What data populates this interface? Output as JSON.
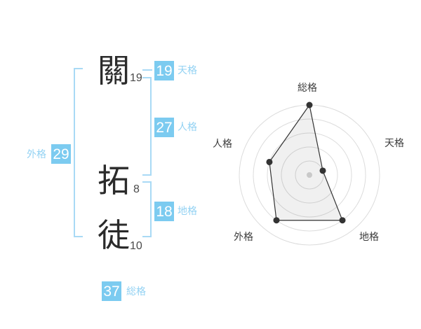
{
  "name_analysis": {
    "surname": [
      {
        "char": "關",
        "strokes": "19"
      }
    ],
    "given_name": [
      {
        "char": "拓",
        "strokes": "8"
      },
      {
        "char": "徒",
        "strokes": "10"
      }
    ],
    "kaku": {
      "tenkaku": {
        "value": "19",
        "label": "天格"
      },
      "jinkaku": {
        "value": "27",
        "label": "人格"
      },
      "chikaku": {
        "value": "18",
        "label": "地格"
      },
      "gaikaku": {
        "value": "29",
        "label": "外格"
      },
      "soukaku": {
        "value": "37",
        "label": "総格"
      }
    }
  },
  "colors": {
    "badge_blue": "#7ccbf0",
    "label_blue": "#93d2f3",
    "bracket_blue": "#a9daf5",
    "ring_gray": "#dcdcdc",
    "polygon_line": "#333333",
    "polygon_fill": "rgba(0,0,0,0.06)",
    "center_dot": "#c9c9c9"
  },
  "chart_data": {
    "type": "radar",
    "axes": [
      "総格",
      "天格",
      "地格",
      "外格",
      "人格"
    ],
    "values": [
      5,
      1,
      4,
      4,
      3
    ],
    "max": 5,
    "rings": 5,
    "start_angle_deg": -90,
    "direction": "clockwise",
    "grid": "concentric-circles",
    "legend": "none"
  }
}
